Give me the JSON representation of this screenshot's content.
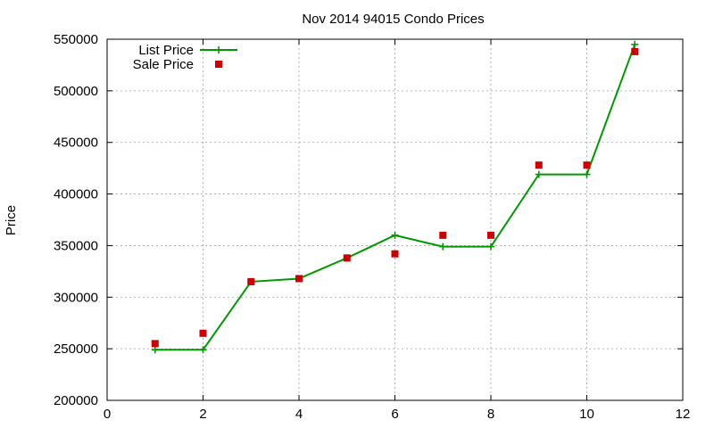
{
  "chart_data": {
    "type": "line",
    "title": "Nov 2014 94015 Condo Prices",
    "xlabel": "",
    "ylabel": "Price",
    "xlim": [
      0,
      12
    ],
    "ylim": [
      200000,
      550000
    ],
    "xticks": [
      0,
      2,
      4,
      6,
      8,
      10,
      12
    ],
    "yticks": [
      200000,
      250000,
      300000,
      350000,
      400000,
      450000,
      500000,
      550000
    ],
    "grid": true,
    "legend_position": "top-left",
    "series": [
      {
        "name": "List Price",
        "style": "line-plus",
        "color": "#009900",
        "x": [
          1,
          2,
          3,
          4,
          5,
          6,
          7,
          8,
          9,
          10,
          11
        ],
        "y": [
          249000,
          249000,
          315000,
          318000,
          338000,
          360000,
          349000,
          349000,
          419000,
          419000,
          545000
        ]
      },
      {
        "name": "Sale Price",
        "style": "square",
        "color": "#cc0000",
        "x": [
          1,
          2,
          3,
          4,
          5,
          6,
          7,
          8,
          9,
          10,
          11
        ],
        "y": [
          255000,
          265000,
          315000,
          318000,
          338000,
          342000,
          360000,
          360000,
          428000,
          428000,
          538000
        ]
      }
    ]
  }
}
